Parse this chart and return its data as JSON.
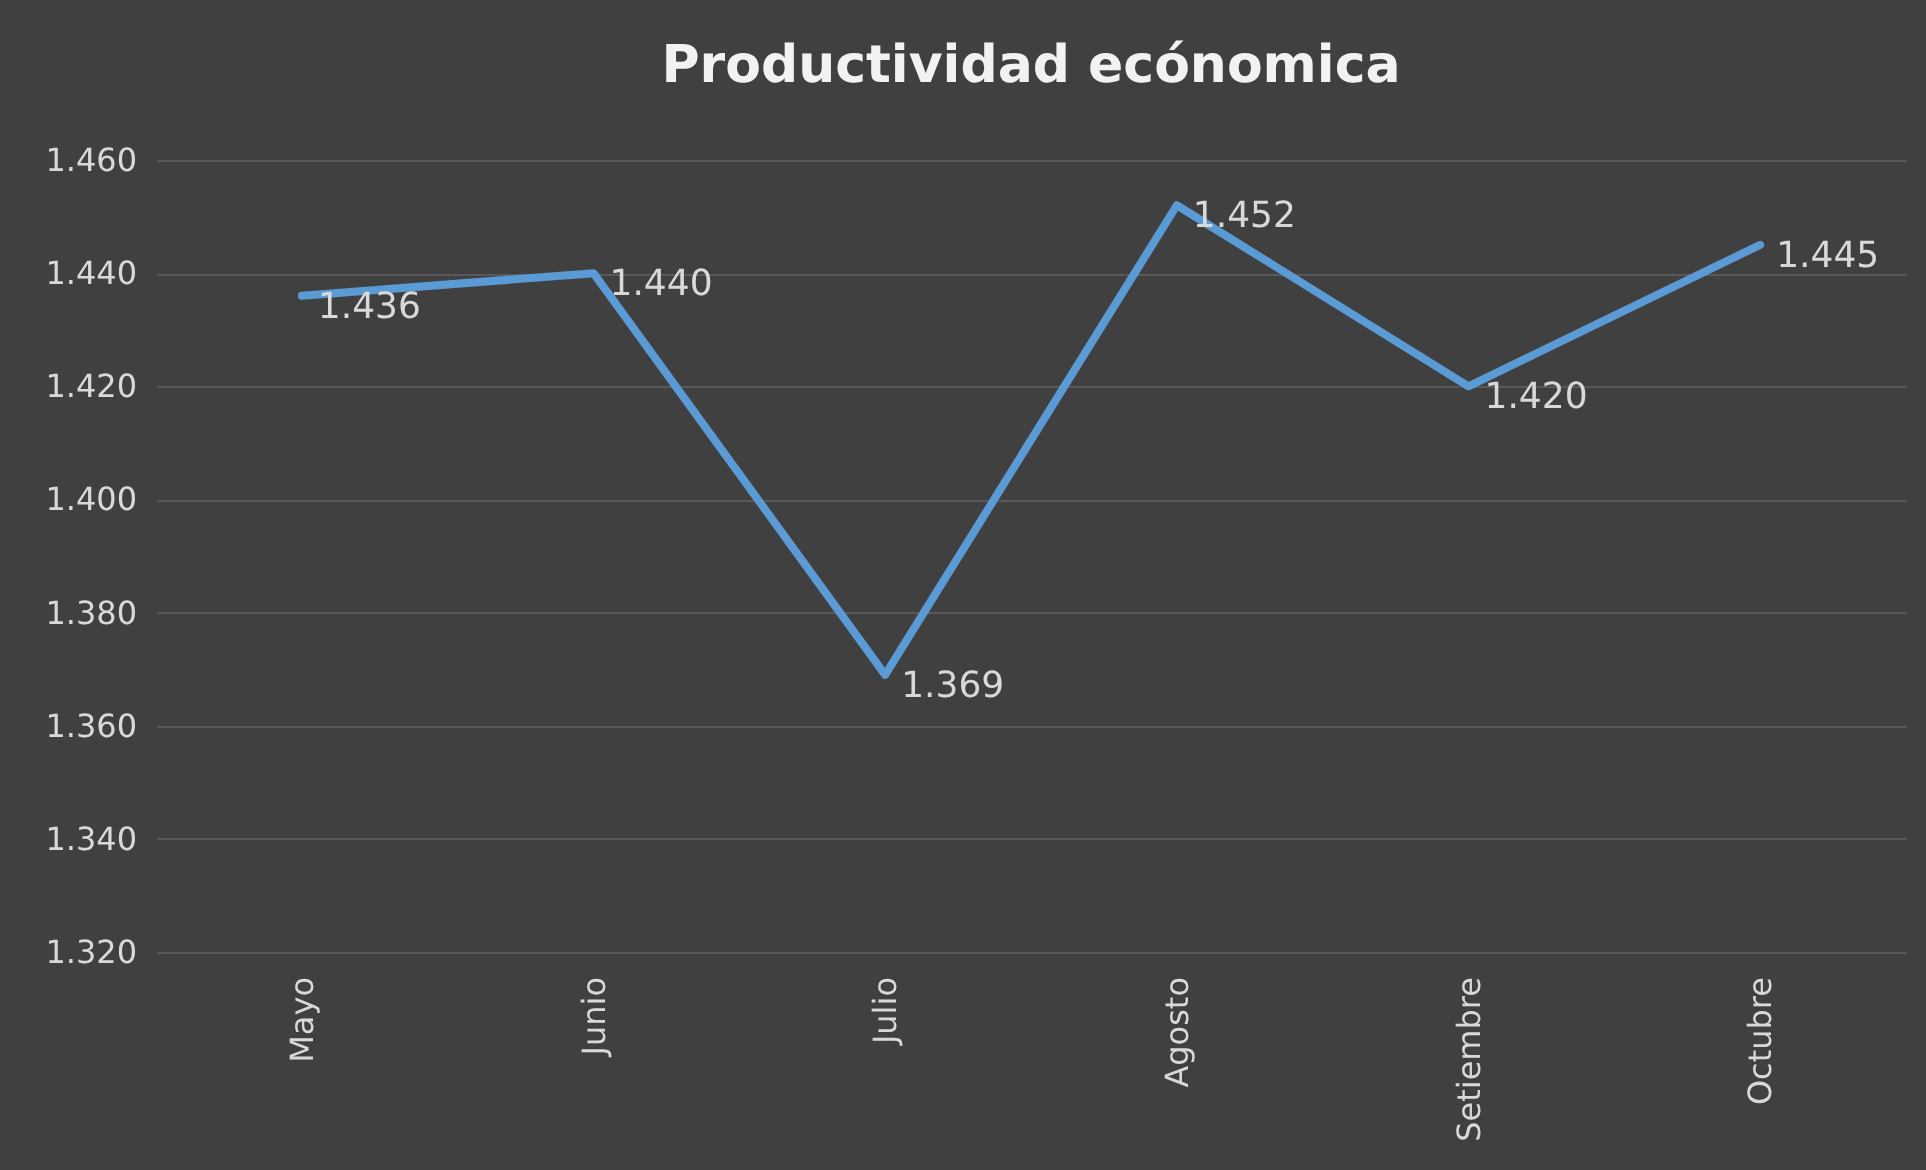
{
  "chart_data": {
    "type": "line",
    "title": "Productividad ecónomica",
    "categories": [
      "Mayo",
      "Junio",
      "Julio",
      "Agosto",
      "Setiembre",
      "Octubre"
    ],
    "series": [
      {
        "color": "#5b9bd5",
        "values": [
          1.436,
          1.44,
          1.369,
          1.452,
          1.42,
          1.445
        ],
        "value_labels": [
          "1.436",
          "1.440",
          "1.369",
          "1.452",
          "1.420",
          "1.445"
        ]
      }
    ],
    "ylim": [
      1.32,
      1.46
    ],
    "yticks": [
      {
        "value": 1.32,
        "label": "1.320"
      },
      {
        "value": 1.34,
        "label": "1.340"
      },
      {
        "value": 1.36,
        "label": "1.360"
      },
      {
        "value": 1.38,
        "label": "1.380"
      },
      {
        "value": 1.4,
        "label": "1.400"
      },
      {
        "value": 1.42,
        "label": "1.420"
      },
      {
        "value": 1.44,
        "label": "1.440"
      },
      {
        "value": 1.46,
        "label": "1.460"
      }
    ],
    "grid": "y",
    "legend": false,
    "marker": "none",
    "line_style": "solid"
  }
}
